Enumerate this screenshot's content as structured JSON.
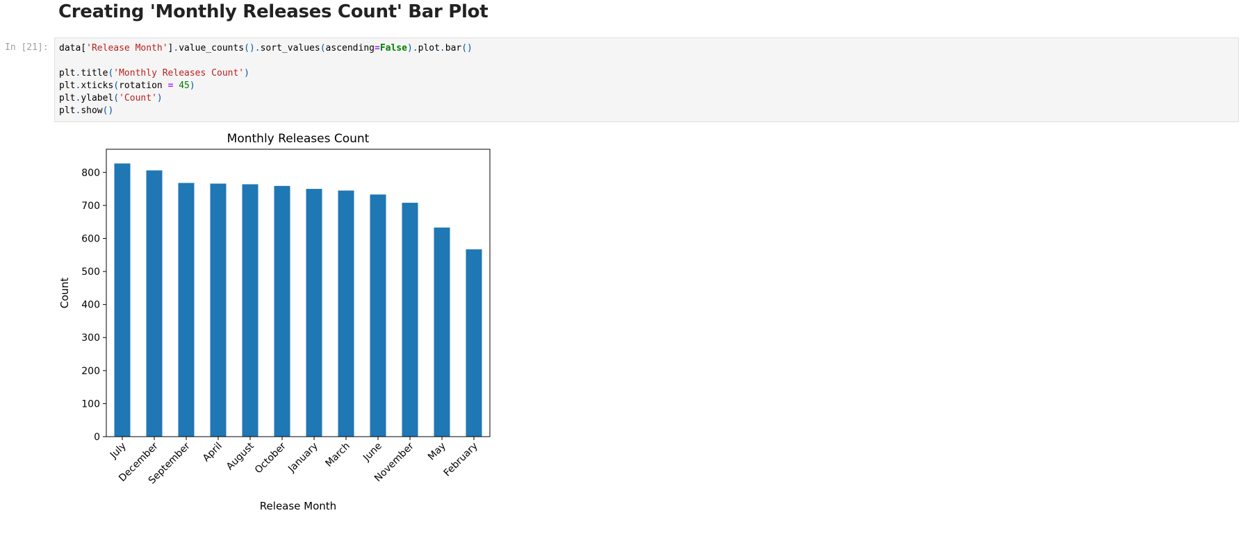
{
  "heading": "Creating 'Monthly Releases Count' Bar Plot",
  "cell": {
    "prompt": "In [21]:",
    "code_lines": [
      [
        {
          "t": "data[",
          "c": ""
        },
        {
          "t": "'Release Month'",
          "c": "str"
        },
        {
          "t": "]",
          "c": ""
        },
        {
          "t": ".",
          "c": "par"
        },
        {
          "t": "value_counts",
          "c": ""
        },
        {
          "t": "()",
          "c": "par"
        },
        {
          "t": ".",
          "c": "par"
        },
        {
          "t": "sort_values",
          "c": ""
        },
        {
          "t": "(",
          "c": "par"
        },
        {
          "t": "ascending",
          "c": ""
        },
        {
          "t": "=",
          "c": "op"
        },
        {
          "t": "False",
          "c": "kw"
        },
        {
          "t": ")",
          "c": "par"
        },
        {
          "t": ".",
          "c": "par"
        },
        {
          "t": "plot",
          "c": ""
        },
        {
          "t": ".",
          "c": "par"
        },
        {
          "t": "bar",
          "c": ""
        },
        {
          "t": "()",
          "c": "par"
        }
      ],
      [],
      [
        {
          "t": "plt",
          "c": ""
        },
        {
          "t": ".",
          "c": "par"
        },
        {
          "t": "title",
          "c": ""
        },
        {
          "t": "(",
          "c": "par"
        },
        {
          "t": "'Monthly Releases Count'",
          "c": "str"
        },
        {
          "t": ")",
          "c": "par"
        }
      ],
      [
        {
          "t": "plt",
          "c": ""
        },
        {
          "t": ".",
          "c": "par"
        },
        {
          "t": "xticks",
          "c": ""
        },
        {
          "t": "(",
          "c": "par"
        },
        {
          "t": "rotation ",
          "c": ""
        },
        {
          "t": "=",
          "c": "op"
        },
        {
          "t": " ",
          "c": ""
        },
        {
          "t": "45",
          "c": "num"
        },
        {
          "t": ")",
          "c": "par"
        }
      ],
      [
        {
          "t": "plt",
          "c": ""
        },
        {
          "t": ".",
          "c": "par"
        },
        {
          "t": "ylabel",
          "c": ""
        },
        {
          "t": "(",
          "c": "par"
        },
        {
          "t": "'Count'",
          "c": "str"
        },
        {
          "t": ")",
          "c": "par"
        }
      ],
      [
        {
          "t": "plt",
          "c": ""
        },
        {
          "t": ".",
          "c": "par"
        },
        {
          "t": "show",
          "c": ""
        },
        {
          "t": "()",
          "c": "par"
        }
      ]
    ]
  },
  "chart_data": {
    "type": "bar",
    "title": "Monthly Releases Count",
    "xlabel": "Release Month",
    "ylabel": "Count",
    "categories": [
      "July",
      "December",
      "September",
      "April",
      "August",
      "October",
      "January",
      "March",
      "June",
      "November",
      "May",
      "February"
    ],
    "values": [
      827,
      806,
      768,
      766,
      764,
      759,
      750,
      745,
      733,
      708,
      633,
      567
    ],
    "ylim": [
      0,
      870
    ],
    "yticks": [
      0,
      100,
      200,
      300,
      400,
      500,
      600,
      700,
      800
    ],
    "bar_color": "#1f77b4",
    "xtick_rotation": 45,
    "grid": false,
    "legend": "none"
  }
}
